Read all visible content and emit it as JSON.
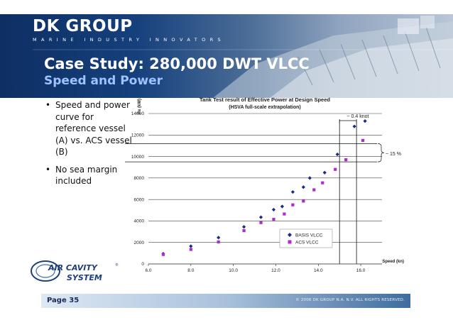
{
  "brand": {
    "name": "DK GROUP",
    "tagline": "MARINE INDUSTRY INNOVATORS"
  },
  "slide": {
    "title": "Case Study: 280,000 DWT VLCC",
    "subtitle": "Speed and Power"
  },
  "bullets": [
    {
      "dot": "•",
      "text": "Speed and power curve for reference vessel (A) vs. ACS vessel (B)"
    },
    {
      "dot": "•",
      "text": "No sea margin included"
    }
  ],
  "logo": {
    "line1": "AIR CAVITY",
    "line2": "SYSTEM",
    "mark": "®"
  },
  "footer": {
    "page": "Page 35",
    "copyright": "© 2006 DK GROUP N.A. N.V. ALL RIGHTS RESERVED."
  },
  "colors": {
    "header_dark": "#0d2f63",
    "subtitle_blue": "#9ec3ff",
    "basis_series": "#1c2a8a",
    "acs_series": "#b02ad0"
  },
  "chart_data": {
    "type": "scatter",
    "title": "Tank Test result of Effective Power at Design Speed",
    "subtitle": "(HSVA full-scale extrapolation)",
    "ylabel": "Pe (kW)",
    "xlabel": "Speed (kn)",
    "xlim": [
      6.0,
      17.0
    ],
    "ylim": [
      0,
      14000
    ],
    "x_ticks": [
      "6.0",
      "8.0",
      "10.0",
      "12.0",
      "14.0",
      "16.0"
    ],
    "x_tick_values": [
      6,
      8,
      10,
      12,
      14,
      16
    ],
    "y_ticks": [
      "0",
      "2000",
      "4000",
      "6000",
      "8000",
      "10000",
      "12000",
      "14000"
    ],
    "y_tick_values": [
      0,
      2000,
      4000,
      6000,
      8000,
      10000,
      12000,
      14000
    ],
    "series": [
      {
        "name": "BASIS VLCC",
        "marker": "diamond",
        "x": [
          6.7,
          8.0,
          9.3,
          10.5,
          11.3,
          11.9,
          12.3,
          12.8,
          13.3,
          13.6,
          14.3,
          14.9,
          15.7,
          16.2
        ],
        "y": [
          950,
          1650,
          2450,
          3450,
          4350,
          5050,
          5350,
          6700,
          7150,
          8000,
          8500,
          10200,
          12800,
          13300
        ],
        "fit": {
          "a": 74.7,
          "p": 3.06
        }
      },
      {
        "name": "ACS VLCC",
        "marker": "square",
        "x": [
          6.7,
          8.0,
          9.3,
          10.5,
          11.3,
          11.9,
          12.4,
          12.8,
          13.3,
          13.8,
          14.2,
          14.8,
          15.3,
          16.1
        ],
        "y": [
          880,
          1350,
          2050,
          3100,
          3850,
          4150,
          4650,
          5500,
          5850,
          6900,
          7550,
          8800,
          9700,
          11500
        ],
        "fit": {
          "a": 64.5,
          "p": 3.06
        }
      }
    ],
    "annotations": {
      "speed_delta": "~ 0.4 knot",
      "power_delta": "~ 15 %"
    },
    "ref_lines": {
      "vertical_speeds": [
        15.0,
        15.8
      ],
      "horizontal_powers": [
        11200,
        9500
      ]
    },
    "legend_position": "lower-right",
    "grid": "horizontal"
  }
}
